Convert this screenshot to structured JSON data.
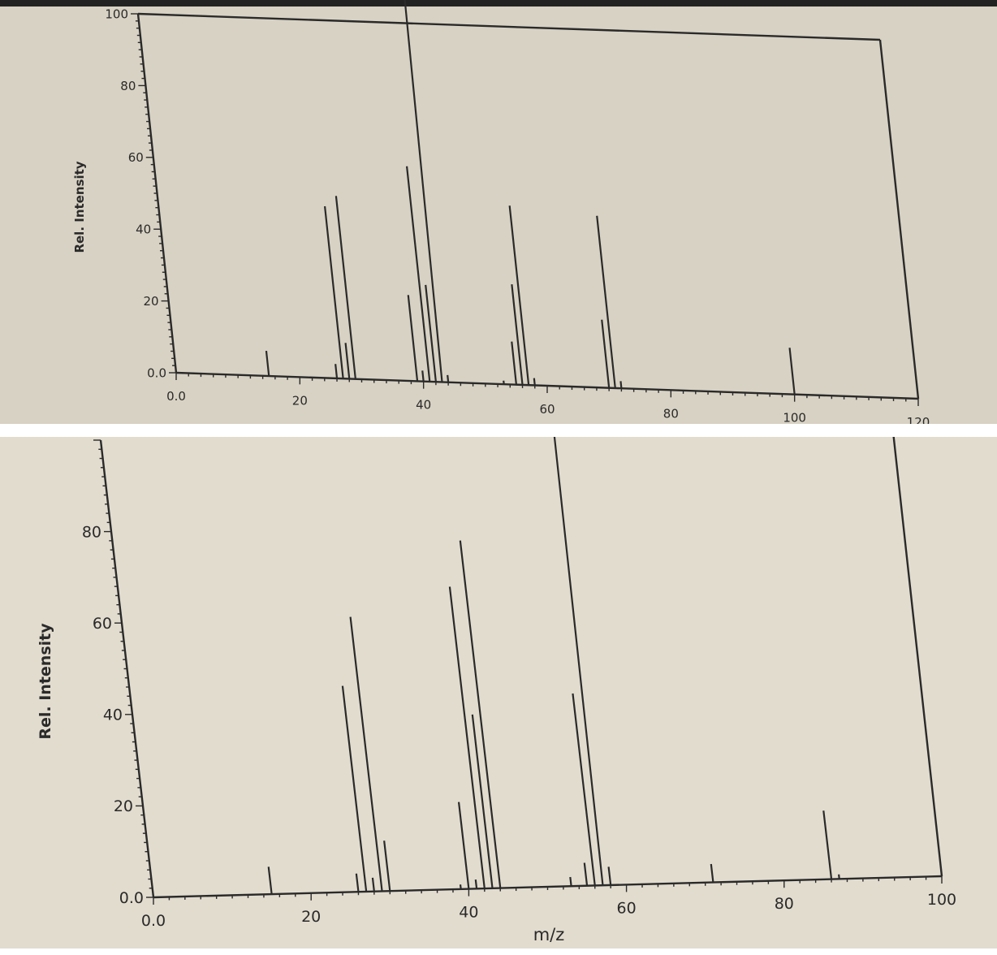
{
  "chart_data": [
    {
      "type": "bar",
      "chart_style": "mass spectrum stick plot",
      "ylabel": "Rel. Intensity",
      "xlabel": "",
      "xlim": [
        0,
        120
      ],
      "ylim": [
        0,
        100
      ],
      "x_ticks": [
        "0.0",
        "20",
        "40",
        "60",
        "80",
        "100",
        "120"
      ],
      "y_ticks": [
        "0.0",
        "20",
        "40",
        "60",
        "80",
        "100"
      ],
      "series": [
        {
          "x": [
            15,
            26,
            27,
            28,
            29,
            39,
            40,
            41,
            42,
            43,
            44,
            53,
            55,
            56,
            57,
            58,
            70,
            71,
            72,
            100
          ],
          "values": [
            7,
            4,
            48,
            10,
            51,
            24,
            3,
            60,
            27,
            100,
            2,
            1,
            12,
            28,
            50,
            2,
            19,
            48,
            2,
            13
          ]
        }
      ]
    },
    {
      "type": "bar",
      "chart_style": "mass spectrum stick plot",
      "ylabel": "Rel. Intensity",
      "xlabel": "m/z",
      "xlim": [
        0,
        100
      ],
      "ylim": [
        0,
        100
      ],
      "x_ticks": [
        "0.0",
        "20",
        "40",
        "60",
        "80",
        "100"
      ],
      "y_ticks": [
        "0.0",
        "20",
        "40",
        "60",
        "80"
      ],
      "series": [
        {
          "x": [
            15,
            26,
            27,
            28,
            29,
            30,
            39,
            40,
            41,
            42,
            43,
            44,
            53,
            55,
            56,
            57,
            58,
            71,
            86,
            87
          ],
          "values": [
            6,
            4,
            45,
            3,
            60,
            11,
            1,
            19,
            2,
            66,
            38,
            76,
            2,
            5,
            42,
            100,
            4,
            4,
            15,
            1
          ]
        }
      ]
    }
  ],
  "colors": {
    "paper_top": "#d8d2c4",
    "paper_bottom": "#e2dccf",
    "ink": "#2a2a2a"
  }
}
